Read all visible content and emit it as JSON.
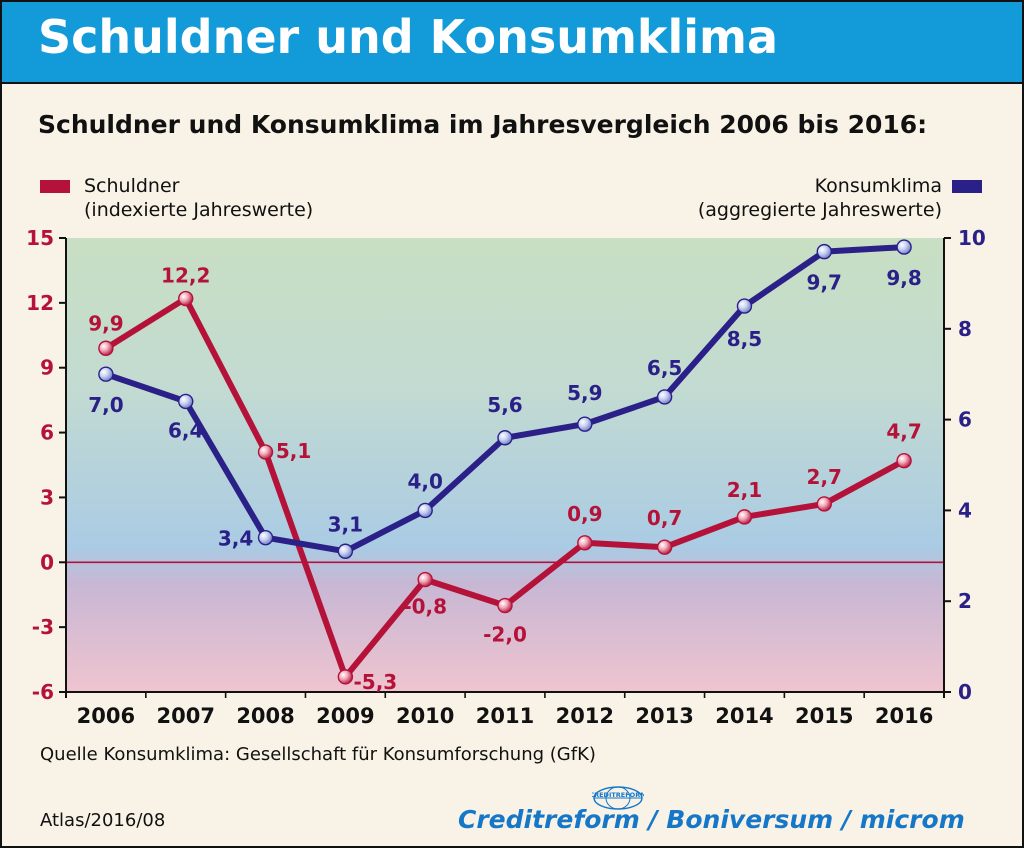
{
  "banner_title": "Schuldner und Konsumklima",
  "subtitle": "Schuldner und Konsumklima im Jahresvergleich 2006 bis 2016:",
  "legend": {
    "left_line1": "Schuldner",
    "left_line2": "(indexierte Jahreswerte)",
    "right_line1": "Konsumklima",
    "right_line2": "(aggregierte Jahreswerte)"
  },
  "source_note": "Quelle Konsumklima: Gesellschaft für Konsumforschung (GfK)",
  "atlas_ref": "Atlas/2016/08",
  "brand": "Creditreform / Boniversum / microm",
  "brand_globe_text": "CREDITREFORM",
  "colors": {
    "banner": "#139ad8",
    "schuldner": "#b5123a",
    "konsumklima": "#2a2088",
    "background": "#f8f3e6"
  },
  "chart_data": {
    "type": "line",
    "title": "Schuldner und Konsumklima im Jahresvergleich 2006 bis 2016:",
    "categories": [
      "2006",
      "2007",
      "2008",
      "2009",
      "2010",
      "2011",
      "2012",
      "2013",
      "2014",
      "2015",
      "2016"
    ],
    "series": [
      {
        "name": "Schuldner",
        "axis": "left",
        "color": "#b5123a",
        "values": [
          9.9,
          12.2,
          5.1,
          -5.3,
          -0.8,
          -2.0,
          0.9,
          0.7,
          2.1,
          2.7,
          4.7
        ],
        "labels": [
          "9,9",
          "12,2",
          "5,1",
          "-5,3",
          "-0,8",
          "-2,0",
          "0,9",
          "0,7",
          "2,1",
          "2,7",
          "4,7"
        ]
      },
      {
        "name": "Konsumklima",
        "axis": "right",
        "color": "#2a2088",
        "values": [
          7.0,
          6.4,
          3.4,
          3.1,
          4.0,
          5.6,
          5.9,
          6.5,
          8.5,
          9.7,
          9.8
        ],
        "labels": [
          "7,0",
          "6,4",
          "3,4",
          "3,1",
          "4,0",
          "5,6",
          "5,9",
          "6,5",
          "8,5",
          "9,7",
          "9,8"
        ]
      }
    ],
    "y_left": {
      "label": "Schuldner (indexierte Jahreswerte)",
      "ylim": [
        -6,
        15
      ],
      "ticks": [
        "15",
        "12",
        "9",
        "6",
        "3",
        "0",
        "-3",
        "-6"
      ],
      "tick_values": [
        15,
        12,
        9,
        6,
        3,
        0,
        -3,
        -6
      ]
    },
    "y_right": {
      "label": "Konsumklima (aggregierte Jahreswerte)",
      "ylim": [
        0,
        10
      ],
      "ticks": [
        "10",
        "8",
        "6",
        "4",
        "2",
        "0"
      ],
      "tick_values": [
        10,
        8,
        6,
        4,
        2,
        0
      ]
    },
    "zero_line": true,
    "grid": false,
    "legend_position": "top"
  }
}
